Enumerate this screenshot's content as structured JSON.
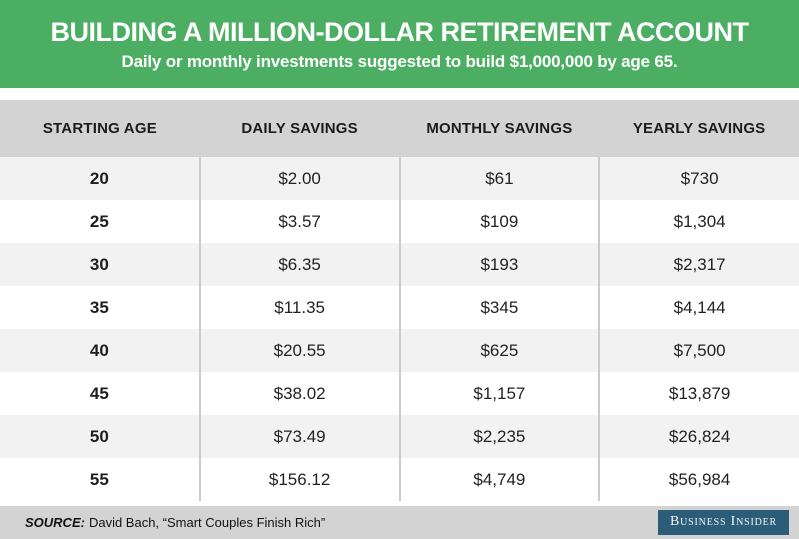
{
  "banner": {
    "title": "BUILDING A MILLION-DOLLAR RETIREMENT ACCOUNT",
    "subtitle": "Daily or monthly investments suggested to build $1,000,000 by age 65."
  },
  "table": {
    "columns": [
      "STARTING AGE",
      "DAILY SAVINGS",
      "MONTHLY SAVINGS",
      "YEARLY SAVINGS"
    ],
    "rows": [
      {
        "age": "20",
        "daily": "$2.00",
        "monthly": "$61",
        "yearly": "$730"
      },
      {
        "age": "25",
        "daily": "$3.57",
        "monthly": "$109",
        "yearly": "$1,304"
      },
      {
        "age": "30",
        "daily": "$6.35",
        "monthly": "$193",
        "yearly": "$2,317"
      },
      {
        "age": "35",
        "daily": "$11.35",
        "monthly": "$345",
        "yearly": "$4,144"
      },
      {
        "age": "40",
        "daily": "$20.55",
        "monthly": "$625",
        "yearly": "$7,500"
      },
      {
        "age": "45",
        "daily": "$38.02",
        "monthly": "$1,157",
        "yearly": "$13,879"
      },
      {
        "age": "50",
        "daily": "$73.49",
        "monthly": "$2,235",
        "yearly": "$26,824"
      },
      {
        "age": "55",
        "daily": "$156.12",
        "monthly": "$4,749",
        "yearly": "$56,984"
      }
    ]
  },
  "footer": {
    "source_label": "SOURCE:",
    "source_text": "David Bach, “Smart Couples Finish Rich”",
    "brand": "Business Insider"
  },
  "colors": {
    "banner_green": "#4BAE62",
    "header_gray": "#D3D3D3",
    "row_alt_gray": "#F2F2F2",
    "divider_gray": "#CBCBCB",
    "footer_gray": "#D3D3D3",
    "brand_badge_blue": "#2B5D78",
    "banner_text": "#FFFFFF",
    "body_text": "#222222"
  },
  "chart_data": {
    "type": "table",
    "title": "BUILDING A MILLION-DOLLAR RETIREMENT ACCOUNT",
    "subtitle": "Daily or monthly investments suggested to build $1,000,000 by age 65.",
    "columns": [
      "STARTING AGE",
      "DAILY SAVINGS",
      "MONTHLY SAVINGS",
      "YEARLY SAVINGS"
    ],
    "starting_age": [
      20,
      25,
      30,
      35,
      40,
      45,
      50,
      55
    ],
    "daily_savings": [
      2.0,
      3.57,
      6.35,
      11.35,
      20.55,
      38.02,
      73.49,
      156.12
    ],
    "monthly_savings": [
      61,
      109,
      193,
      345,
      625,
      1157,
      2235,
      4749
    ],
    "yearly_savings": [
      730,
      1304,
      2317,
      4144,
      7500,
      13879,
      26824,
      56984
    ],
    "source": "David Bach, “Smart Couples Finish Rich”"
  }
}
